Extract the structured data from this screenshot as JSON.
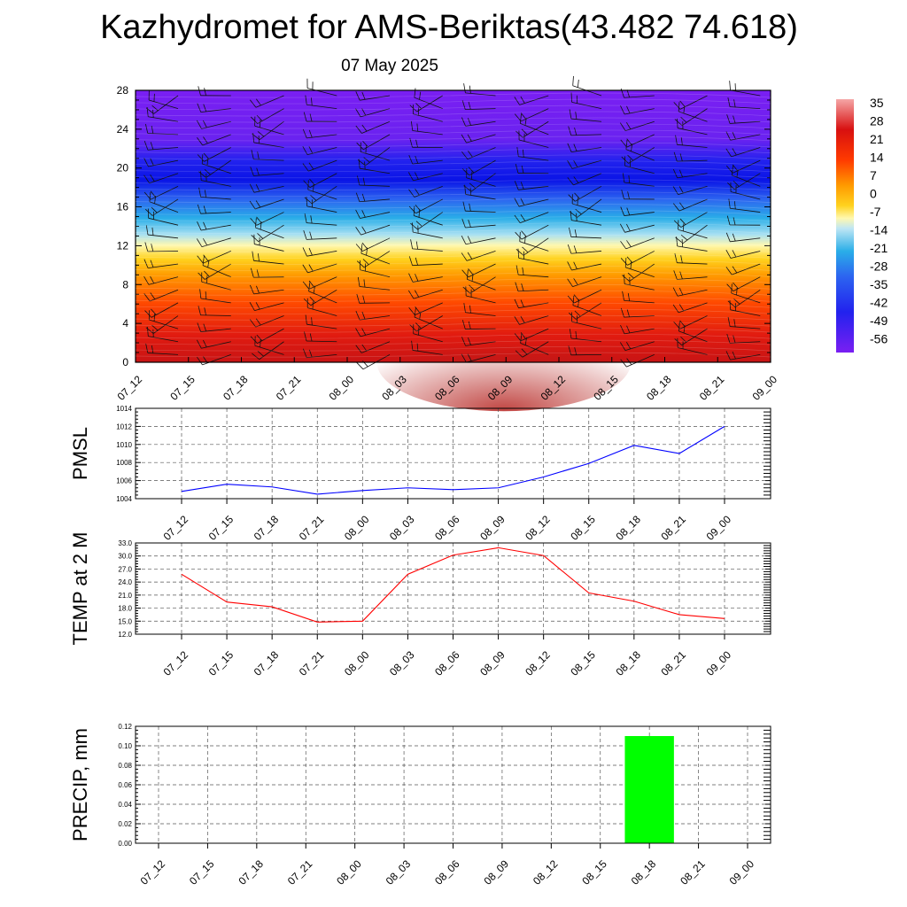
{
  "title": "Kazhydromet for AMS-Beriktas(43.482 74.618)",
  "subtitle": "07 May 2025",
  "chart_data": [
    {
      "type": "heatmap",
      "ylim": [
        0,
        28
      ],
      "y_ticks": [
        0,
        4,
        8,
        12,
        16,
        20,
        24,
        28
      ],
      "x_ticks": [
        "07_12",
        "07_15",
        "07_18",
        "07_21",
        "08_00",
        "08_03",
        "08_06",
        "08_09",
        "08_12",
        "08_15",
        "08_18",
        "08_21",
        "09_00"
      ],
      "colorbar_labels": [
        "35",
        "28",
        "21",
        "14",
        "7",
        "0",
        "-7",
        "-14",
        "-21",
        "-28",
        "-35",
        "-42",
        "-49",
        "-56"
      ],
      "overlay": "wind barbs"
    },
    {
      "type": "line",
      "ylabel": "PMSL",
      "x": [
        "07_12",
        "07_15",
        "07_18",
        "07_21",
        "08_00",
        "08_03",
        "08_06",
        "08_09",
        "08_12",
        "08_15",
        "08_18",
        "08_21",
        "09_00"
      ],
      "values": [
        1004.8,
        1005.6,
        1005.3,
        1004.5,
        1004.9,
        1005.2,
        1005.0,
        1005.2,
        1006.4,
        1007.9,
        1009.9,
        1009.0,
        1012.0
      ],
      "ylim": [
        1004,
        1014
      ],
      "y_ticks": [
        "1004",
        "1006",
        "1008",
        "1010",
        "1012",
        "1014"
      ],
      "color": "#0000ff",
      "grid": true
    },
    {
      "type": "line",
      "ylabel": "TEMP at 2 M",
      "x": [
        "07_12",
        "07_15",
        "07_18",
        "07_21",
        "08_00",
        "08_03",
        "08_06",
        "08_09",
        "08_12",
        "08_15",
        "08_18",
        "08_21",
        "09_00"
      ],
      "values": [
        25.8,
        19.4,
        18.3,
        14.8,
        15.0,
        25.8,
        30.2,
        31.9,
        30.1,
        21.5,
        19.6,
        16.5,
        15.6
      ],
      "ylim": [
        12,
        33
      ],
      "y_ticks": [
        "12.0",
        "15.0",
        "18.0",
        "21.0",
        "24.0",
        "27.0",
        "30.0",
        "33.0"
      ],
      "color": "#ff0000",
      "grid": true
    },
    {
      "type": "bar",
      "ylabel": "PRECIP, mm",
      "categories": [
        "07_12",
        "07_15",
        "07_18",
        "07_21",
        "08_00",
        "08_03",
        "08_06",
        "08_09",
        "08_12",
        "08_15",
        "08_18",
        "08_21",
        "09_00"
      ],
      "values": [
        0,
        0,
        0,
        0,
        0,
        0,
        0,
        0,
        0,
        0,
        0.11,
        0,
        0
      ],
      "ylim": [
        0,
        0.12
      ],
      "y_ticks": [
        "0.00",
        "0.02",
        "0.04",
        "0.06",
        "0.08",
        "0.10",
        "0.12"
      ],
      "color": "#00ff00",
      "grid": true
    }
  ]
}
